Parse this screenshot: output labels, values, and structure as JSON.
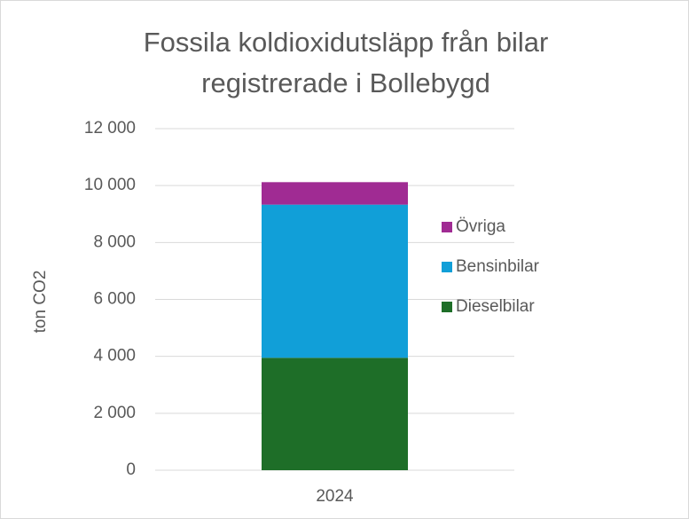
{
  "chart_data": {
    "type": "stacked_bar",
    "title": [
      "Fossila koldioxidutsläpp från bilar",
      "registrerade i Bollebygd"
    ],
    "y_label": "ton CO2",
    "categories": [
      "2024"
    ],
    "series": [
      {
        "name": "Dieselbilar",
        "color": "#1e6e28",
        "values": [
          3950
        ]
      },
      {
        "name": "Bensinbilar",
        "color": "#119fd8",
        "values": [
          5380
        ]
      },
      {
        "name": "Övriga",
        "color": "#a02b93",
        "values": [
          790
        ]
      }
    ],
    "ylim": [
      0,
      12000
    ],
    "yticks": [
      0,
      {
        "value": 2000,
        "label": "2 000"
      },
      {
        "value": 4000,
        "label": "4 000"
      },
      {
        "value": 6000,
        "label": "6 000"
      },
      {
        "value": 8000,
        "label": "8 000"
      },
      {
        "value": 10000,
        "label": "10 000"
      },
      {
        "value": 12000,
        "label": "12 000"
      }
    ],
    "grid": true,
    "legend": "right"
  }
}
